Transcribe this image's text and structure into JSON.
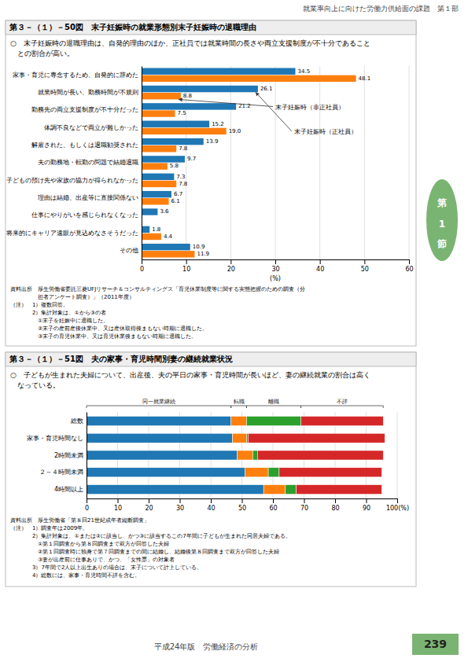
{
  "page": {
    "header": "就業率向上に向けた労働力供給面の課題　第１部",
    "tab": [
      "第",
      "1",
      "節"
    ],
    "footer": "平成24年版　労働経済の分析",
    "page_number": "239"
  },
  "chart_data": [
    {
      "type": "bar",
      "orientation": "horizontal",
      "title": "第３－（１）－50図　末子妊娠時の就業形態別末子妊娠時の退職理由",
      "subtitle": "○　末子妊娠時の退職理由は、自発的理由のほか、正社員では就業時間の長さや両立支援制度が不十分であること\n　との割合が高い。",
      "categories": [
        "家事・育児に専念するため、自発的に辞めた",
        "就業時間が長い、勤務時間が不規則",
        "勤務先の両立支援制度が不十分だった",
        "体調不良などで両立が難しかった",
        "解雇された、もしくは退職勧奨された",
        "夫の勤務地・転勤の問題で結婚退職",
        "子どもの預け先や家族の協力が得られなかった",
        "理由は結婚、出産等に直接関係ない",
        "仕事にやりがいを感じられなくなった",
        "将来的にキャリア遠眼が見込めなさそうだった",
        "その他"
      ],
      "series": [
        {
          "name": "末子妊娠時（正社員）",
          "values": [
            34.5,
            26.1,
            21.2,
            15.2,
            13.9,
            9.7,
            7.3,
            6.7,
            3.6,
            1.8,
            10.9
          ]
        },
        {
          "name": "末子妊娠時（非正社員）",
          "values": [
            48.1,
            8.8,
            7.5,
            19.0,
            7.8,
            5.8,
            7.8,
            6.1,
            0.0,
            4.4,
            11.9
          ],
          "value_labels": [
            "48.1",
            "8.8",
            "7.5",
            "19.0",
            "7.8",
            "5.8",
            "7.8",
            "6.1",
            null,
            "4.4",
            "11.9"
          ]
        }
      ],
      "xlabel": "(%)",
      "xlim": [
        0,
        60
      ],
      "xticks": [
        0,
        10,
        20,
        30,
        40,
        50,
        60
      ],
      "grid": true,
      "data_labels": true,
      "source": [
        "資料出所　厚生労働省委託三菱UFJリサーチ＆コンサルティングス「育児休業制度等に関する実態把握のための調査（分",
        "　　　　　担者アンケート調査）」（2011年度）"
      ],
      "notes": [
        "（注）　1）複数回答。",
        "　　　　2）集計対象は、①から③の者",
        "　　　　　①末子を妊娠中に退職した。",
        "　　　　　②末子の産前産後休業中、又は産休取得後まもない時期に退職した。",
        "　　　　　③末子の育児休業中、又は育児休業後まもない時期に退職した。"
      ]
    },
    {
      "type": "bar",
      "orientation": "horizontal",
      "stacked": true,
      "title": "第３－（１）－51図　夫の家事・育児時間別妻の継続就業状況",
      "subtitle": "○　子どもが生まれた夫婦について、出産後、夫の平日の家事・育児時間が長いほど、妻の継続就業の割合は高く\n　なっている。",
      "categories": [
        "総数",
        "家事・育児時間なし",
        "2時間未満",
        "２～４時間未満",
        "4時間以上"
      ],
      "series": [
        {
          "name": "同一就業継続",
          "values": [
            46.5,
            47.0,
            48.5,
            51.0,
            57.0
          ]
        },
        {
          "name": "転職",
          "values": [
            5.0,
            4.5,
            5.0,
            7.5,
            7.0
          ]
        },
        {
          "name": "離職",
          "values": [
            17.5,
            0.5,
            1.5,
            3.5,
            3.5
          ]
        },
        {
          "name": "不詳",
          "values": [
            26.5,
            44.0,
            40.5,
            33.0,
            27.5
          ]
        }
      ],
      "legend": "top",
      "xlim": [
        0,
        100
      ],
      "xticks": [
        0,
        10,
        20,
        30,
        40,
        50,
        60,
        70,
        80,
        90,
        {
          "value": 100,
          "label": "100(%)"
        }
      ],
      "grid": true,
      "source": [
        "資料出所　厚生労働省「第８回21世紀成年者縦断調査」"
      ],
      "notes": [
        "（注）　1）調査年は2009年。",
        "　　　　2）集計対象は、①または②に該当し、かつ③に該当するこの7年間に子どもが生まれた同居夫婦である。",
        "　　　　　①第１回調査から第８回調査まで双方が回答した夫婦",
        "　　　　　②第１回調査時に独身で第７回調査までの間に結婚し、結婚後第８回調査まで双方が回答した夫婦",
        "　　　　　③妻が出産前に仕事ありで、かつ、「女性票」の対象者",
        "　　　　3）7年間で2人以上出生ありの場合は、末子について計上している。",
        "　　　　4）総数には、家事・育児時間不詳を含む。"
      ]
    }
  ]
}
